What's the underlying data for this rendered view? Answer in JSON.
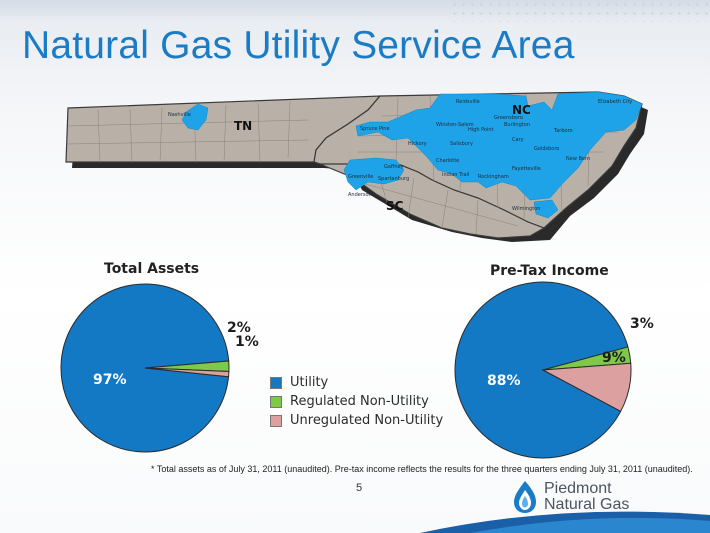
{
  "title": "Natural Gas Utility Service Area",
  "map": {
    "state_labels": [
      "TN",
      "NC",
      "SC"
    ],
    "cities": [
      "Nashville",
      "Reidsville",
      "Greensboro",
      "Burlington",
      "Winston-Salem",
      "High Point",
      "Elizabeth City",
      "Tarboro",
      "Spruce Pine",
      "Hickory",
      "Salisbury",
      "Cary",
      "Goldsboro",
      "Charlotte",
      "New Bern",
      "Gaffney",
      "Greenville",
      "Spartanburg",
      "Indian Trail",
      "Rockingham",
      "Fayetteville",
      "Anderson",
      "Wilmington"
    ],
    "colors": {
      "service": "#1fa3e8",
      "land": "#b9b1a8",
      "border": "#3a3a3a"
    }
  },
  "legend": [
    {
      "label": "Utility",
      "color": "#1479c4"
    },
    {
      "label": "Regulated Non-Utility",
      "color": "#7ec84a"
    },
    {
      "label": "Unregulated Non-Utility",
      "color": "#dda0a0"
    }
  ],
  "chart_data": [
    {
      "type": "pie",
      "title": "Total Assets",
      "categories": [
        "Utility",
        "Regulated Non-Utility",
        "Unregulated Non-Utility"
      ],
      "values": [
        97,
        2,
        1
      ],
      "labels": [
        "97%",
        "2%",
        "1%"
      ]
    },
    {
      "type": "pie",
      "title": "Pre-Tax Income",
      "categories": [
        "Utility",
        "Regulated Non-Utility",
        "Unregulated Non-Utility"
      ],
      "values": [
        88,
        3,
        9
      ],
      "labels": [
        "88%",
        "3%",
        "9%"
      ]
    }
  ],
  "footnote": "* Total assets as of July 31, 2011 (unaudited). Pre-tax income reflects the results for the three quarters ending July 31, 2011 (unaudited).",
  "page_number": "5",
  "logo": {
    "line1": "Piedmont",
    "line2": "Natural Gas"
  }
}
